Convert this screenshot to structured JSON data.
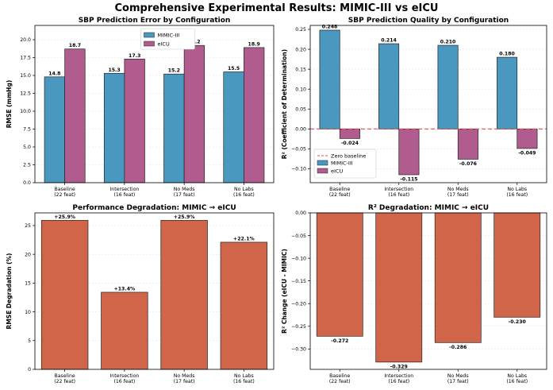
{
  "suptitle": "Comprehensive Experimental Results: MIMIC-III vs eICU",
  "colors": {
    "mimic": "#4a98bf",
    "eicu": "#b05c8e",
    "degradation": "#d1654a",
    "zero_line": "#e05050"
  },
  "chart_data": [
    {
      "type": "bar",
      "title": "SBP Prediction Error by Configuration",
      "xlabel": "",
      "ylabel": "RMSE (mmHg)",
      "ylim": [
        0,
        22
      ],
      "yticks": [
        "0.0",
        "2.5",
        "5.0",
        "7.5",
        "10.0",
        "12.5",
        "15.0",
        "17.5",
        "20.0"
      ],
      "categories": [
        [
          "Baseline",
          "(22 feat)"
        ],
        [
          "Intersection",
          "(16 feat)"
        ],
        [
          "No Meds",
          "(17 feat)"
        ],
        [
          "No Labs",
          "(16 feat)"
        ]
      ],
      "series": [
        {
          "name": "MIMIC-III",
          "values": [
            14.8,
            15.3,
            15.2,
            15.5
          ],
          "labels": [
            "14.8",
            "15.3",
            "15.2",
            "15.5"
          ]
        },
        {
          "name": "eICU",
          "values": [
            18.7,
            17.3,
            19.2,
            18.9
          ],
          "labels": [
            "18.7",
            "17.3",
            "19.2",
            "18.9"
          ]
        }
      ],
      "legend": "top-center",
      "grid": true
    },
    {
      "type": "bar",
      "title": "SBP Prediction Quality by Configuration",
      "xlabel": "",
      "ylabel": "R² (Coefficient of Determination)",
      "ylim": [
        -0.135,
        0.26
      ],
      "yticks": [
        "−0.10",
        "−0.05",
        "0.00",
        "0.05",
        "0.10",
        "0.15",
        "0.20",
        "0.25"
      ],
      "categories": [
        [
          "Baseline",
          "(22 feat)"
        ],
        [
          "Intersection",
          "(16 feat)"
        ],
        [
          "No Meds",
          "(17 feat)"
        ],
        [
          "No Labs",
          "(16 feat)"
        ]
      ],
      "series": [
        {
          "name": "MIMIC-III",
          "values": [
            0.248,
            0.214,
            0.21,
            0.18
          ],
          "labels": [
            "0.248",
            "0.214",
            "0.210",
            "0.180"
          ]
        },
        {
          "name": "eICU",
          "values": [
            -0.024,
            -0.115,
            -0.076,
            -0.049
          ],
          "labels": [
            "-0.024",
            "-0.115",
            "-0.076",
            "-0.049"
          ]
        }
      ],
      "reference_line": {
        "name": "Zero baseline",
        "y": 0
      },
      "legend": "lower-left",
      "grid": true
    },
    {
      "type": "bar",
      "title": "Performance Degradation: MIMIC → eICU",
      "xlabel": "",
      "ylabel": "RMSE Degradation (%)",
      "ylim": [
        0,
        27.2
      ],
      "yticks": [
        "0",
        "5",
        "10",
        "15",
        "20",
        "25"
      ],
      "categories": [
        [
          "Baseline",
          "(22 feat)"
        ],
        [
          "Intersection",
          "(16 feat)"
        ],
        [
          "No Meds",
          "(17 feat)"
        ],
        [
          "No Labs",
          "(16 feat)"
        ]
      ],
      "series": [
        {
          "values": [
            25.9,
            13.4,
            25.9,
            22.1
          ],
          "labels": [
            "+25.9%",
            "+13.4%",
            "+25.9%",
            "+22.1%"
          ]
        }
      ],
      "grid": true
    },
    {
      "type": "bar",
      "title": "R² Degradation: MIMIC → eICU",
      "xlabel": "",
      "ylabel": "R² Change (eICU - MIMIC)",
      "ylim": [
        -0.345,
        0
      ],
      "yticks": [
        "−0.30",
        "−0.25",
        "−0.20",
        "−0.15",
        "−0.10",
        "−0.05",
        "0.00"
      ],
      "categories": [
        [
          "Baseline",
          "(22 feat)"
        ],
        [
          "Intersection",
          "(16 feat)"
        ],
        [
          "No Meds",
          "(17 feat)"
        ],
        [
          "No Labs",
          "(16 feat)"
        ]
      ],
      "series": [
        {
          "values": [
            -0.272,
            -0.329,
            -0.286,
            -0.23
          ],
          "labels": [
            "-0.272",
            "-0.329",
            "-0.286",
            "-0.230"
          ]
        }
      ],
      "grid": true
    }
  ]
}
